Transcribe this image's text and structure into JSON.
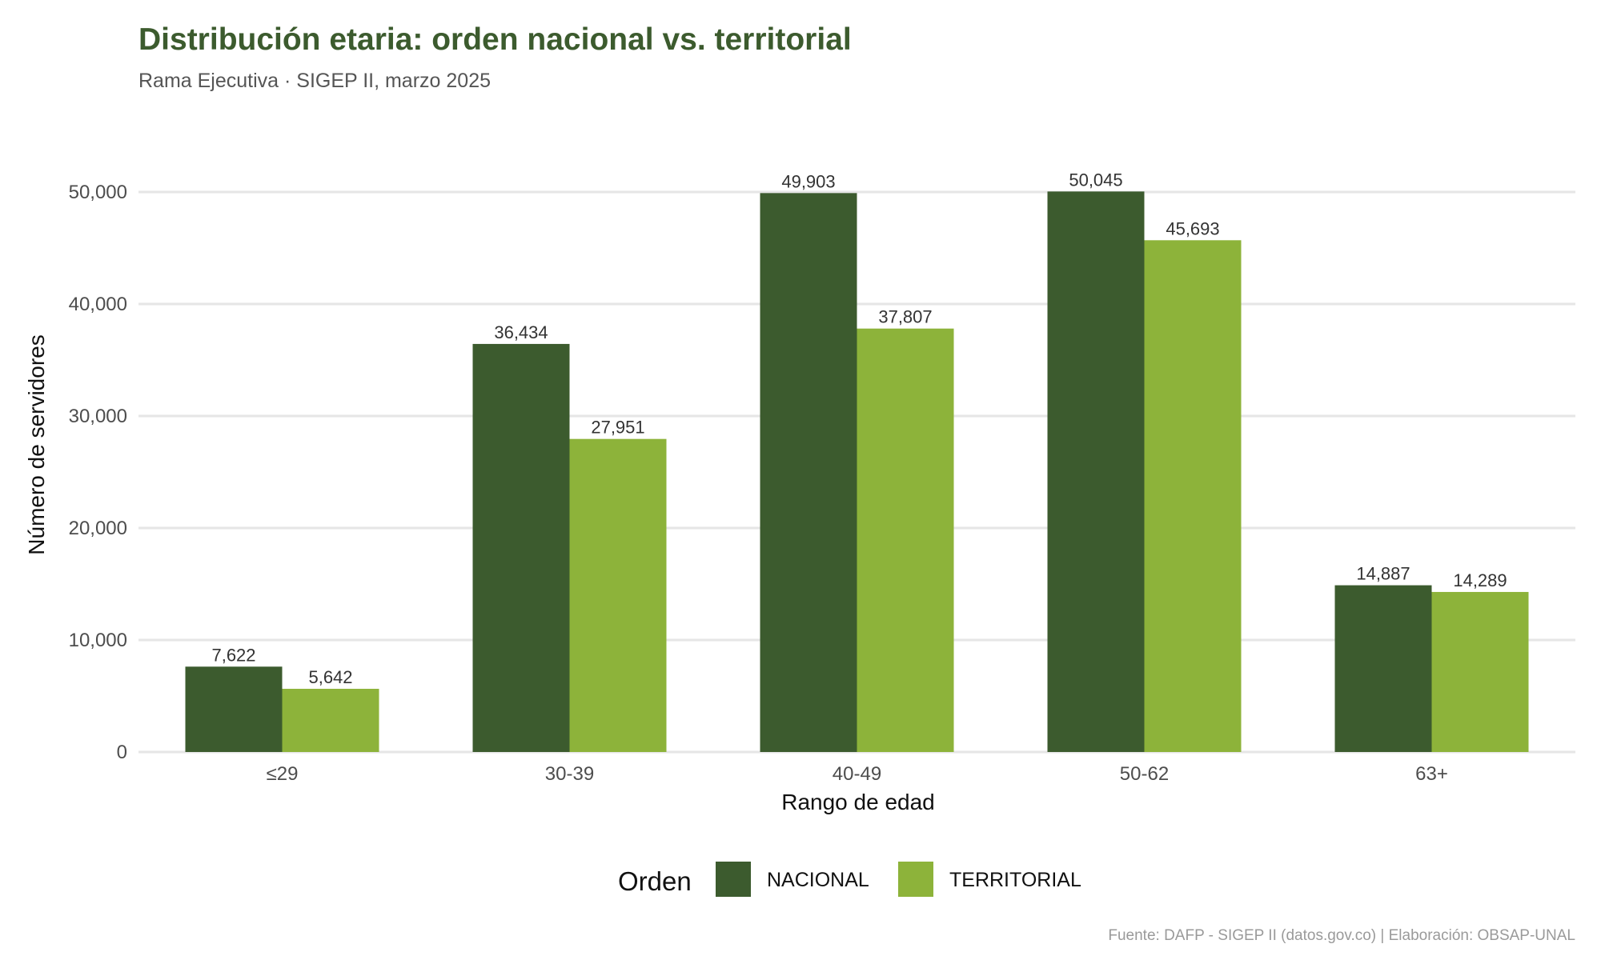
{
  "chart_data": {
    "type": "bar",
    "title": "Distribución etaria: orden nacional vs. territorial",
    "subtitle": "Rama Ejecutiva · SIGEP II, marzo 2025",
    "xlabel": "Rango de edad",
    "ylabel": "Número de servidores",
    "categories": [
      "≤29",
      "30-39",
      "40-49",
      "50-62",
      "63+"
    ],
    "series": [
      {
        "name": "NACIONAL",
        "values": [
          7622,
          36434,
          49903,
          50045,
          14887
        ],
        "color": "#3c5b2e"
      },
      {
        "name": "TERRITORIAL",
        "values": [
          5642,
          27951,
          37807,
          45693,
          14289
        ],
        "color": "#8db33a"
      }
    ],
    "value_labels": {
      "NACIONAL": [
        "7,622",
        "36,434",
        "49,903",
        "50,045",
        "14,887"
      ],
      "TERRITORIAL": [
        "5,642",
        "27,951",
        "37,807",
        "45,693",
        "14,289"
      ]
    },
    "ylim": [
      0,
      50000
    ],
    "yticks": [
      0,
      10000,
      20000,
      30000,
      40000,
      50000
    ],
    "ytick_labels": [
      "0",
      "10,000",
      "20,000",
      "30,000",
      "40,000",
      "50,000"
    ],
    "legend": {
      "title": "Orden",
      "position": "bottom"
    },
    "grid": true,
    "caption": "Fuente: DAFP - SIGEP II (datos.gov.co) | Elaboración: OBSAP-UNAL",
    "title_color": "#3c5b2e"
  }
}
